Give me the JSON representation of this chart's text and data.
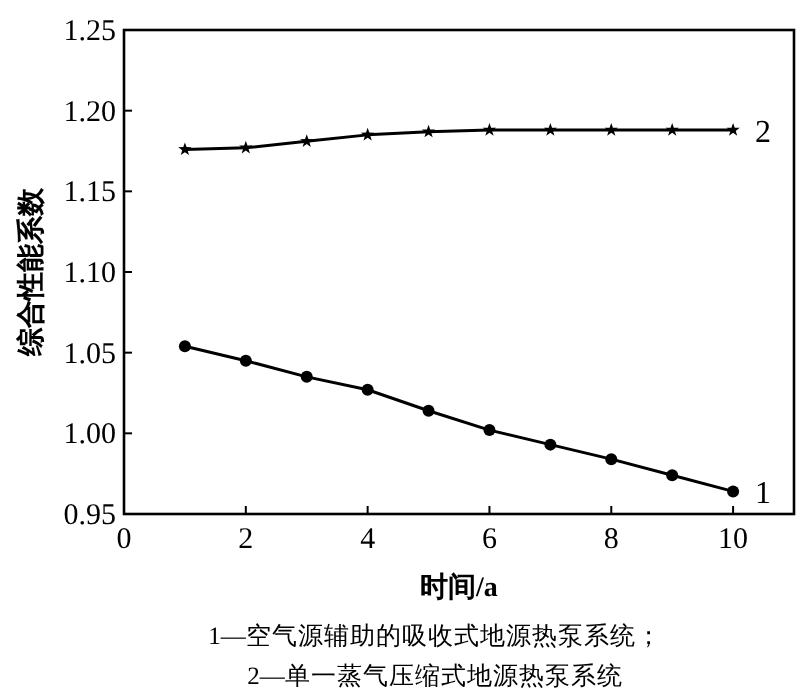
{
  "chart_data": {
    "type": "line",
    "xlabel": "时间/a",
    "ylabel": "综合性能系数",
    "x": [
      1,
      2,
      3,
      4,
      5,
      6,
      7,
      8,
      9,
      10
    ],
    "series": [
      {
        "name": "1",
        "color": "#000000",
        "marker": "circle",
        "values": [
          1.054,
          1.045,
          1.035,
          1.027,
          1.014,
          1.002,
          0.993,
          0.984,
          0.974,
          0.964
        ]
      },
      {
        "name": "2",
        "color": "#000000",
        "marker": "star",
        "values": [
          1.176,
          1.177,
          1.181,
          1.185,
          1.187,
          1.188,
          1.188,
          1.188,
          1.188,
          1.188
        ]
      }
    ],
    "xlim": [
      0,
      11
    ],
    "xticks": [
      0,
      2,
      4,
      6,
      8,
      10
    ],
    "ylim": [
      0.95,
      1.25
    ],
    "yticks": [
      {
        "value": 0.95,
        "label": "0.95"
      },
      {
        "value": 1.0,
        "label": "1.00"
      },
      {
        "value": 1.05,
        "label": "1.05"
      },
      {
        "value": 1.1,
        "label": "1.10"
      },
      {
        "value": 1.15,
        "label": "1.15"
      },
      {
        "value": 1.2,
        "label": "1.20"
      },
      {
        "value": 1.25,
        "label": "1.25"
      }
    ],
    "grid": false,
    "line_style": "solid",
    "annotations": [
      "1—空气源辅助的吸收式地源热泵系统；",
      "2—单一蒸气压缩式地源热泵系统"
    ]
  }
}
